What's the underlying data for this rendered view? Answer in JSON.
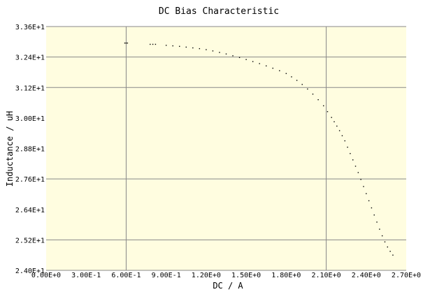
{
  "chart_data": {
    "type": "scatter",
    "title": "DC Bias Characteristic",
    "xlabel": "DC / A",
    "ylabel": "Inductance / uH",
    "xlim": [
      0,
      2.7
    ],
    "ylim": [
      24.0,
      33.6
    ],
    "x_ticks": [
      0,
      0.3,
      0.6,
      0.9,
      1.2,
      1.5,
      1.8,
      2.1,
      2.4,
      2.7
    ],
    "x_tick_labels": [
      "0.00E+0",
      "3.00E-1",
      "6.00E-1",
      "9.00E-1",
      "1.20E+0",
      "1.50E+0",
      "1.80E+0",
      "2.10E+0",
      "2.40E+0",
      "2.70E+0"
    ],
    "y_ticks": [
      24.0,
      25.2,
      26.4,
      27.6,
      28.8,
      30.0,
      31.2,
      32.4,
      33.6
    ],
    "y_tick_labels": [
      "2.40E+1",
      "2.52E+1",
      "2.64E+1",
      "2.76E+1",
      "2.88E+1",
      "3.00E+1",
      "3.12E+1",
      "3.24E+1",
      "3.36E+1"
    ],
    "grid_x": [
      0.6,
      2.1
    ],
    "grid_y": [
      25.2,
      27.6,
      31.2,
      32.4,
      33.6
    ],
    "colors": {
      "plot_bg": "#fffde0",
      "grid": "#888888",
      "marker": "#000000",
      "frame": "#888888"
    },
    "series": [
      {
        "x": [
          0.59,
          0.6,
          0.61,
          0.78,
          0.8,
          0.82,
          0.9,
          0.95,
          1.0,
          1.05,
          1.1,
          1.15,
          1.2,
          1.25,
          1.3,
          1.35,
          1.4,
          1.45,
          1.5,
          1.55,
          1.6,
          1.65,
          1.7,
          1.75,
          1.8,
          1.84,
          1.88,
          1.92,
          1.96,
          2.0,
          2.04,
          2.08,
          2.11,
          2.14,
          2.16,
          2.18,
          2.2,
          2.22,
          2.24,
          2.26,
          2.28,
          2.3,
          2.32,
          2.34,
          2.36,
          2.38,
          2.4,
          2.42,
          2.44,
          2.46,
          2.48,
          2.5,
          2.52,
          2.54,
          2.56,
          2.58,
          2.6
        ],
        "y": [
          32.95,
          32.95,
          32.95,
          32.9,
          32.9,
          32.9,
          32.86,
          32.84,
          32.82,
          32.79,
          32.76,
          32.73,
          32.69,
          32.64,
          32.58,
          32.52,
          32.45,
          32.38,
          32.3,
          32.22,
          32.14,
          32.05,
          31.96,
          31.86,
          31.75,
          31.62,
          31.48,
          31.32,
          31.14,
          30.94,
          30.72,
          30.48,
          30.25,
          30.02,
          29.85,
          29.68,
          29.5,
          29.3,
          29.1,
          28.85,
          28.6,
          28.35,
          28.1,
          27.85,
          27.58,
          27.3,
          27.02,
          26.74,
          26.46,
          26.18,
          25.9,
          25.62,
          25.36,
          25.12,
          24.92,
          24.75,
          24.6
        ]
      }
    ]
  }
}
